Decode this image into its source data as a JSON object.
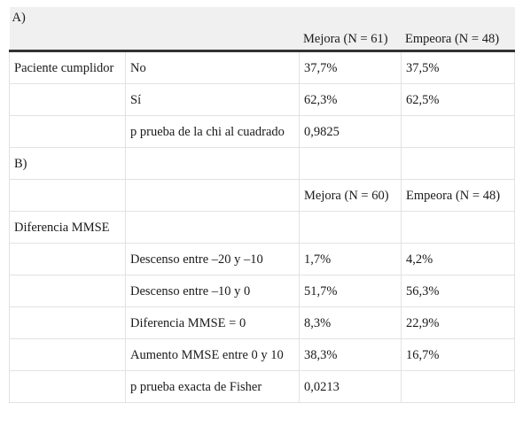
{
  "section_a": {
    "label": "A)",
    "col_mejora": "Mejora (N = 61)",
    "col_empeora": "Empeora (N = 48)",
    "rows": [
      {
        "c1": "Paciente cumplidor",
        "c2": "No",
        "c3": "37,7%",
        "c4": "37,5%"
      },
      {
        "c1": "",
        "c2": "Sí",
        "c3": "62,3%",
        "c4": "62,5%"
      },
      {
        "c1": "",
        "c2": "p prueba de la chi al cuadrado",
        "c3": "0,9825",
        "c4": ""
      }
    ]
  },
  "section_b": {
    "label": "B)",
    "col_mejora": "Mejora (N = 60)",
    "col_empeora": "Empeora (N = 48)",
    "group_label": "Diferencia MMSE",
    "rows": [
      {
        "c1": "",
        "c2": "Descenso entre –20 y –10",
        "c3": "1,7%",
        "c4": "4,2%"
      },
      {
        "c1": "",
        "c2": "Descenso entre –10 y 0",
        "c3": "51,7%",
        "c4": "56,3%"
      },
      {
        "c1": "",
        "c2": "Diferencia MMSE = 0",
        "c3": "8,3%",
        "c4": "22,9%"
      },
      {
        "c1": "",
        "c2": "Aumento MMSE entre 0 y 10",
        "c3": "38,3%",
        "c4": "16,7%"
      },
      {
        "c1": "",
        "c2": "p prueba exacta de Fisher",
        "c3": "0,0213",
        "c4": ""
      }
    ]
  }
}
